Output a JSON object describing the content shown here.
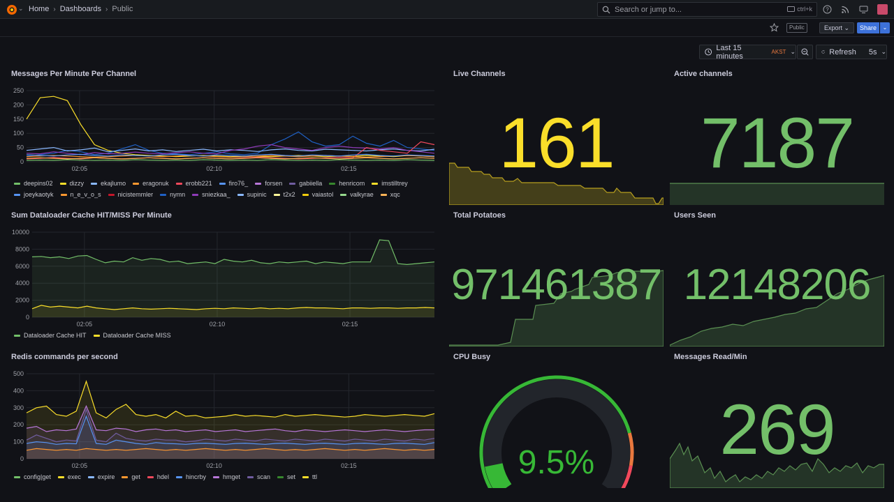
{
  "topbar": {
    "breadcrumbs": [
      "Home",
      "Dashboards",
      "Public"
    ],
    "search_placeholder": "Search or jump to...",
    "search_shortcut": "ctrl+k"
  },
  "subbar": {
    "public_label": "Public",
    "export_label": "Export",
    "share_label": "Share"
  },
  "timepicker": {
    "range_label": "Last 15 minutes",
    "timezone": "AKST",
    "refresh_label": "Refresh",
    "interval": "5s"
  },
  "colors": {
    "green": "#73bf69",
    "yellow": "#fade2a",
    "accent": "#3d71d9",
    "red": "#f2495c"
  },
  "panels": {
    "messages": {
      "title": "Messages Per Minute Per Channel",
      "legend": [
        {
          "name": "deepins02",
          "color": "#73bf69"
        },
        {
          "name": "dizzy",
          "color": "#fade2a"
        },
        {
          "name": "ekajlumo",
          "color": "#8ab8ff"
        },
        {
          "name": "eragonuk",
          "color": "#ff9830"
        },
        {
          "name": "erobb221",
          "color": "#f2495c"
        },
        {
          "name": "firo76_",
          "color": "#5794f2"
        },
        {
          "name": "forsen",
          "color": "#b877d9"
        },
        {
          "name": "gabiiella",
          "color": "#705da0"
        },
        {
          "name": "henricom",
          "color": "#37872d"
        },
        {
          "name": "imstilltrey",
          "color": "#fade2a"
        },
        {
          "name": "joeykaotyk",
          "color": "#5794f2"
        },
        {
          "name": "n_e_v_o_s",
          "color": "#ff9830"
        },
        {
          "name": "nicistemmler",
          "color": "#c4162a"
        },
        {
          "name": "nymn",
          "color": "#1f60c4"
        },
        {
          "name": "sniezkaa_",
          "color": "#8f3bb8"
        },
        {
          "name": "supinic",
          "color": "#8ab8ff"
        },
        {
          "name": "t2x2",
          "color": "#fff899"
        },
        {
          "name": "vaiastol",
          "color": "#f2cc0c"
        },
        {
          "name": "valkyrae",
          "color": "#96d98d"
        },
        {
          "name": "xqc",
          "color": "#ffb357"
        }
      ]
    },
    "dataloader": {
      "title": "Sum Dataloader Cache HIT/MISS Per Minute",
      "legend": [
        {
          "name": "Dataloader Cache HIT",
          "color": "#73bf69"
        },
        {
          "name": "Dataloader Cache MISS",
          "color": "#fade2a"
        }
      ]
    },
    "redis": {
      "title": "Redis commands per second",
      "legend": [
        {
          "name": "config|get",
          "color": "#73bf69"
        },
        {
          "name": "exec",
          "color": "#fade2a"
        },
        {
          "name": "expire",
          "color": "#8ab8ff"
        },
        {
          "name": "get",
          "color": "#ff9830"
        },
        {
          "name": "hdel",
          "color": "#f2495c"
        },
        {
          "name": "hincrby",
          "color": "#5794f2"
        },
        {
          "name": "hmget",
          "color": "#b877d9"
        },
        {
          "name": "scan",
          "color": "#705da0"
        },
        {
          "name": "set",
          "color": "#37872d"
        },
        {
          "name": "ttl",
          "color": "#fade2a"
        }
      ]
    },
    "live_channels": {
      "title": "Live Channels",
      "value": "161",
      "color": "#fade2a"
    },
    "active_channels": {
      "title": "Active channels",
      "value": "7187",
      "color": "#73bf69"
    },
    "total_potatoes": {
      "title": "Total Potatoes",
      "value": "971461387",
      "color": "#73bf69"
    },
    "users_seen": {
      "title": "Users Seen",
      "value": "12148206",
      "color": "#73bf69"
    },
    "cpu_busy": {
      "title": "CPU Busy",
      "value": "9.5%",
      "percent": 9.5,
      "color": "#37b836"
    },
    "messages_read": {
      "title": "Messages Read/Min",
      "value": "269",
      "color": "#73bf69"
    }
  },
  "chart_data": [
    {
      "type": "line",
      "title": "Messages Per Minute Per Channel",
      "xticks": [
        "02:05",
        "02:10",
        "02:15"
      ],
      "ylim": [
        0,
        250
      ],
      "yticks": [
        0,
        50,
        100,
        150,
        200,
        250
      ],
      "series": [
        {
          "name": "dizzy",
          "values": [
            150,
            225,
            230,
            215,
            130,
            60,
            40,
            30,
            25,
            22,
            20,
            18,
            20,
            22,
            20,
            18,
            20,
            19,
            18,
            20,
            22,
            20,
            18,
            20,
            19,
            22,
            20,
            18,
            22,
            20,
            18
          ]
        },
        {
          "name": "nymn",
          "values": [
            20,
            25,
            30,
            40,
            35,
            25,
            30,
            45,
            60,
            40,
            30,
            28,
            25,
            30,
            35,
            28,
            25,
            30,
            60,
            80,
            105,
            70,
            55,
            60,
            90,
            65,
            55,
            75,
            50,
            45,
            40
          ]
        },
        {
          "name": "supinic",
          "values": [
            40,
            45,
            50,
            38,
            42,
            48,
            35,
            40,
            45,
            38,
            42,
            36,
            40,
            44,
            38,
            42,
            40,
            36,
            42,
            45,
            40,
            38,
            44,
            42,
            40,
            38,
            42,
            45,
            40,
            38,
            44
          ]
        },
        {
          "name": "sniezkaa_",
          "values": [
            30,
            28,
            35,
            30,
            25,
            32,
            28,
            30,
            34,
            30,
            28,
            32,
            35,
            30,
            28,
            40,
            45,
            55,
            60,
            50,
            45,
            40,
            50,
            55,
            50,
            48,
            45,
            50,
            40,
            35,
            30
          ]
        },
        {
          "name": "erobb221",
          "values": [
            10,
            12,
            15,
            12,
            10,
            14,
            12,
            10,
            12,
            14,
            12,
            10,
            12,
            14,
            12,
            10,
            14,
            16,
            14,
            12,
            10,
            12,
            14,
            16,
            14,
            50,
            40,
            35,
            30,
            70,
            60
          ]
        },
        {
          "name": "eragonuk",
          "values": [
            18,
            20,
            22,
            20,
            18,
            16,
            18,
            20,
            22,
            20,
            18,
            20,
            22,
            20,
            18,
            16,
            18,
            20,
            22,
            20,
            18,
            20,
            22,
            20,
            18,
            16,
            18,
            20,
            22,
            20,
            18
          ]
        },
        {
          "name": "firo76_",
          "values": [
            25,
            22,
            20,
            24,
            26,
            22,
            20,
            24,
            22,
            20,
            24,
            26,
            22,
            20,
            24,
            22,
            20,
            24,
            26,
            22,
            20,
            24,
            22,
            20,
            24,
            26,
            22,
            20,
            24,
            22,
            20
          ]
        },
        {
          "name": "deepins02",
          "values": [
            5,
            6,
            5,
            7,
            6,
            5,
            6,
            5,
            7,
            6,
            5,
            6,
            5,
            7,
            6,
            5,
            6,
            5,
            7,
            6,
            5,
            6,
            5,
            7,
            6,
            5,
            6,
            5,
            7,
            6,
            5
          ]
        },
        {
          "name": "xqc",
          "values": [
            12,
            14,
            12,
            10,
            12,
            14,
            12,
            10,
            12,
            14,
            12,
            10,
            12,
            14,
            12,
            10,
            12,
            14,
            12,
            10,
            12,
            14,
            12,
            10,
            12,
            14,
            12,
            10,
            12,
            14,
            12
          ]
        }
      ]
    },
    {
      "type": "area",
      "title": "Sum Dataloader Cache HIT/MISS Per Minute",
      "xticks": [
        "02:05",
        "02:10",
        "02:15"
      ],
      "ylim": [
        0,
        10000
      ],
      "yticks": [
        0,
        2000,
        4000,
        6000,
        8000,
        10000
      ],
      "series": [
        {
          "name": "Dataloader Cache HIT",
          "values": [
            7100,
            7150,
            7000,
            7100,
            6900,
            7200,
            7250,
            6800,
            6400,
            6600,
            6500,
            7000,
            6700,
            6900,
            6800,
            6500,
            6600,
            6300,
            6400,
            6500,
            6300,
            6800,
            6600,
            6500,
            6700,
            6400,
            6300,
            6500,
            6400,
            6500,
            6600,
            6300,
            6500,
            6400,
            6300,
            6500,
            6500,
            6500,
            9100,
            9000,
            6300,
            6200,
            6300,
            6400,
            6500
          ]
        },
        {
          "name": "Dataloader Cache MISS",
          "values": [
            1000,
            1400,
            1200,
            1300,
            1200,
            1100,
            1300,
            1100,
            1000,
            900,
            1000,
            1100,
            1000,
            950,
            1000,
            1050,
            1000,
            950,
            900,
            1000,
            1050,
            1000,
            1100,
            1050,
            1000,
            1100,
            1000,
            1050,
            1000,
            1100,
            1150,
            1100,
            1100,
            1050,
            1000,
            1100,
            1100,
            1050,
            1100,
            1100,
            1050,
            1100,
            1100,
            1150,
            1100
          ]
        }
      ]
    },
    {
      "type": "area",
      "title": "Redis commands per second",
      "xticks": [
        "02:05",
        "02:10",
        "02:15"
      ],
      "ylim": [
        0,
        500
      ],
      "yticks": [
        0,
        100,
        200,
        300,
        400,
        500
      ],
      "series": [
        {
          "name": "exec",
          "values": [
            270,
            300,
            310,
            260,
            250,
            280,
            455,
            270,
            240,
            290,
            320,
            260,
            250,
            260,
            240,
            280,
            250,
            255,
            240,
            245,
            250,
            260,
            250,
            255,
            250,
            245,
            260,
            250,
            255,
            260,
            255,
            250,
            245,
            250,
            260,
            255,
            250,
            255,
            260,
            255,
            250,
            265
          ]
        },
        {
          "name": "hmget",
          "values": [
            180,
            190,
            160,
            170,
            165,
            175,
            310,
            170,
            165,
            180,
            175,
            160,
            170,
            175,
            165,
            170,
            160,
            165,
            170,
            160,
            165,
            170,
            160,
            165,
            170,
            175,
            165,
            160,
            170,
            165,
            160,
            165,
            170,
            165,
            160,
            165,
            170,
            165,
            160,
            165,
            170,
            170
          ]
        },
        {
          "name": "scan",
          "values": [
            110,
            140,
            120,
            100,
            110,
            105,
            290,
            110,
            100,
            150,
            120,
            110,
            105,
            115,
            110,
            110,
            100,
            105,
            115,
            110,
            105,
            115,
            110,
            105,
            115,
            110,
            105,
            115,
            110,
            105,
            115,
            110,
            105,
            115,
            110,
            105,
            115,
            110,
            105,
            115,
            110,
            120
          ]
        },
        {
          "name": "hincrby",
          "values": [
            90,
            100,
            95,
            85,
            90,
            88,
            250,
            90,
            85,
            110,
            100,
            90,
            85,
            95,
            90,
            88,
            85,
            90,
            92,
            88,
            85,
            90,
            92,
            88,
            85,
            90,
            92,
            88,
            85,
            90,
            92,
            88,
            85,
            90,
            92,
            88,
            85,
            90,
            92,
            88,
            85,
            95
          ]
        },
        {
          "name": "get",
          "values": [
            50,
            60,
            55,
            50,
            55,
            50,
            60,
            55,
            50,
            55,
            50,
            55,
            60,
            55,
            50,
            55,
            50,
            55,
            60,
            55,
            50,
            55,
            50,
            55,
            60,
            55,
            50,
            55,
            50,
            55,
            60,
            55,
            50,
            55,
            50,
            55,
            60,
            55,
            50,
            55,
            50,
            55
          ]
        }
      ]
    }
  ]
}
